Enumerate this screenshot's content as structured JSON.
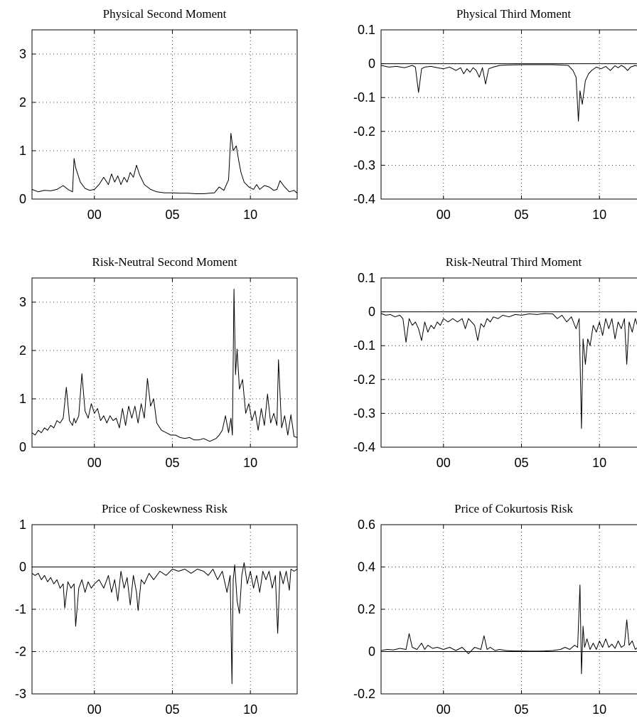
{
  "chart_data": [
    {
      "type": "line",
      "title": "Physical Second Moment",
      "xlim": [
        1996.0,
        2013.0
      ],
      "ylim": [
        0,
        3.5
      ],
      "xticks": [
        {
          "v": 2000,
          "label": "00"
        },
        {
          "v": 2005,
          "label": "05"
        },
        {
          "v": 2010,
          "label": "10"
        }
      ],
      "yticks": [
        {
          "v": 0,
          "label": "0"
        },
        {
          "v": 1,
          "label": "1"
        },
        {
          "v": 2,
          "label": "2"
        },
        {
          "v": 3,
          "label": "3"
        }
      ],
      "grid": true,
      "zero_line": false,
      "x": [
        1996.0,
        1996.4,
        1996.8,
        1997.2,
        1997.6,
        1998.0,
        1998.3,
        1998.6,
        1998.7,
        1998.8,
        1999.1,
        1999.4,
        1999.7,
        2000.0,
        2000.3,
        2000.6,
        2000.9,
        2001.1,
        2001.3,
        2001.5,
        2001.7,
        2001.9,
        2002.1,
        2002.3,
        2002.5,
        2002.7,
        2002.9,
        2003.2,
        2003.6,
        2004.0,
        2004.5,
        2005.0,
        2005.5,
        2006.0,
        2006.5,
        2007.0,
        2007.4,
        2007.7,
        2008.0,
        2008.3,
        2008.6,
        2008.75,
        2008.9,
        2009.1,
        2009.25,
        2009.4,
        2009.6,
        2009.9,
        2010.2,
        2010.4,
        2010.6,
        2010.9,
        2011.2,
        2011.5,
        2011.7,
        2011.9,
        2012.2,
        2012.5,
        2012.8,
        2013.0
      ],
      "y": [
        0.2,
        0.15,
        0.18,
        0.17,
        0.2,
        0.28,
        0.2,
        0.15,
        0.84,
        0.65,
        0.35,
        0.22,
        0.18,
        0.2,
        0.3,
        0.45,
        0.3,
        0.52,
        0.35,
        0.48,
        0.3,
        0.45,
        0.35,
        0.55,
        0.45,
        0.7,
        0.5,
        0.3,
        0.2,
        0.15,
        0.13,
        0.13,
        0.12,
        0.12,
        0.11,
        0.11,
        0.12,
        0.13,
        0.25,
        0.18,
        0.4,
        1.36,
        1.0,
        1.1,
        0.8,
        0.55,
        0.35,
        0.25,
        0.2,
        0.3,
        0.2,
        0.28,
        0.25,
        0.18,
        0.2,
        0.38,
        0.25,
        0.15,
        0.18,
        0.12
      ]
    },
    {
      "type": "line",
      "title": "Physical Third Moment",
      "xlim": [
        1996.0,
        2013.0
      ],
      "ylim": [
        -0.4,
        0.1
      ],
      "xticks": [
        {
          "v": 2000,
          "label": "00"
        },
        {
          "v": 2005,
          "label": "05"
        },
        {
          "v": 2010,
          "label": "10"
        }
      ],
      "yticks": [
        {
          "v": 0.1,
          "label": "0.1"
        },
        {
          "v": 0,
          "label": "0"
        },
        {
          "v": -0.1,
          "label": "-0.1"
        },
        {
          "v": -0.2,
          "label": "-0.2"
        },
        {
          "v": -0.3,
          "label": "-0.3"
        },
        {
          "v": -0.4,
          "label": "-0.4"
        }
      ],
      "grid": true,
      "zero_line": true,
      "x": [
        1996.0,
        1996.5,
        1997.0,
        1997.5,
        1998.0,
        1998.2,
        1998.4,
        1998.6,
        1998.8,
        1999.2,
        1999.6,
        2000.0,
        2000.4,
        2000.8,
        2001.1,
        2001.3,
        2001.5,
        2001.7,
        2001.9,
        2002.1,
        2002.3,
        2002.5,
        2002.7,
        2002.9,
        2003.2,
        2003.6,
        2004.0,
        2005.0,
        2006.0,
        2007.0,
        2007.6,
        2008.0,
        2008.3,
        2008.5,
        2008.65,
        2008.75,
        2008.9,
        2009.1,
        2009.3,
        2009.5,
        2009.8,
        2010.1,
        2010.4,
        2010.7,
        2011.0,
        2011.2,
        2011.4,
        2011.6,
        2011.8,
        2012.0,
        2012.3,
        2012.6,
        2013.0
      ],
      "y": [
        -0.005,
        -0.01,
        -0.008,
        -0.012,
        -0.005,
        -0.01,
        -0.085,
        -0.015,
        -0.01,
        -0.008,
        -0.012,
        -0.015,
        -0.01,
        -0.02,
        -0.012,
        -0.03,
        -0.015,
        -0.025,
        -0.012,
        -0.02,
        -0.04,
        -0.012,
        -0.06,
        -0.015,
        -0.01,
        -0.005,
        -0.004,
        -0.003,
        -0.003,
        -0.003,
        -0.004,
        -0.005,
        -0.02,
        -0.04,
        -0.17,
        -0.08,
        -0.12,
        -0.05,
        -0.03,
        -0.02,
        -0.01,
        -0.015,
        -0.008,
        -0.02,
        -0.006,
        -0.012,
        -0.005,
        -0.01,
        -0.02,
        -0.01,
        -0.005,
        -0.01,
        -0.006
      ]
    },
    {
      "type": "line",
      "title": "Risk-Neutral Second Moment",
      "xlim": [
        1996.0,
        2013.0
      ],
      "ylim": [
        0,
        3.5
      ],
      "xticks": [
        {
          "v": 2000,
          "label": "00"
        },
        {
          "v": 2005,
          "label": "05"
        },
        {
          "v": 2010,
          "label": "10"
        }
      ],
      "yticks": [
        {
          "v": 0,
          "label": "0"
        },
        {
          "v": 1,
          "label": "1"
        },
        {
          "v": 2,
          "label": "2"
        },
        {
          "v": 3,
          "label": "3"
        }
      ],
      "grid": true,
      "zero_line": false,
      "x": [
        1996.0,
        1996.2,
        1996.4,
        1996.6,
        1996.8,
        1997.0,
        1997.2,
        1997.4,
        1997.6,
        1997.8,
        1998.0,
        1998.2,
        1998.4,
        1998.6,
        1998.7,
        1998.8,
        1999.0,
        1999.2,
        1999.4,
        1999.6,
        1999.8,
        2000.0,
        2000.2,
        2000.4,
        2000.6,
        2000.8,
        2001.0,
        2001.2,
        2001.4,
        2001.6,
        2001.8,
        2002.0,
        2002.2,
        2002.4,
        2002.6,
        2002.8,
        2003.0,
        2003.2,
        2003.4,
        2003.6,
        2003.8,
        2004.0,
        2004.3,
        2004.6,
        2004.9,
        2005.2,
        2005.5,
        2005.8,
        2006.1,
        2006.4,
        2006.7,
        2007.0,
        2007.2,
        2007.4,
        2007.6,
        2007.8,
        2008.0,
        2008.2,
        2008.4,
        2008.6,
        2008.75,
        2008.85,
        2008.95,
        2009.05,
        2009.15,
        2009.3,
        2009.5,
        2009.7,
        2009.9,
        2010.1,
        2010.3,
        2010.5,
        2010.7,
        2010.9,
        2011.1,
        2011.3,
        2011.5,
        2011.7,
        2011.8,
        2012.0,
        2012.2,
        2012.4,
        2012.6,
        2012.8,
        2013.0
      ],
      "y": [
        0.3,
        0.25,
        0.35,
        0.3,
        0.4,
        0.35,
        0.45,
        0.4,
        0.55,
        0.5,
        0.6,
        1.24,
        0.55,
        0.45,
        0.6,
        0.5,
        0.65,
        1.52,
        0.75,
        0.6,
        0.9,
        0.7,
        0.8,
        0.55,
        0.65,
        0.5,
        0.65,
        0.55,
        0.6,
        0.4,
        0.8,
        0.45,
        0.85,
        0.6,
        0.85,
        0.5,
        0.9,
        0.6,
        1.42,
        0.85,
        1.0,
        0.5,
        0.35,
        0.3,
        0.25,
        0.25,
        0.2,
        0.18,
        0.2,
        0.15,
        0.15,
        0.18,
        0.15,
        0.12,
        0.15,
        0.18,
        0.25,
        0.35,
        0.65,
        0.3,
        0.6,
        0.25,
        3.27,
        1.5,
        2.03,
        1.2,
        1.4,
        0.7,
        0.9,
        0.55,
        0.75,
        0.35,
        0.8,
        0.45,
        1.1,
        0.5,
        0.7,
        0.45,
        1.81,
        0.4,
        0.65,
        0.25,
        0.67,
        0.22,
        0.2
      ]
    },
    {
      "type": "line",
      "title": "Risk-Neutral Third Moment",
      "xlim": [
        1996.0,
        2013.0
      ],
      "ylim": [
        -0.4,
        0.1
      ],
      "xticks": [
        {
          "v": 2000,
          "label": "00"
        },
        {
          "v": 2005,
          "label": "05"
        },
        {
          "v": 2010,
          "label": "10"
        }
      ],
      "yticks": [
        {
          "v": 0.1,
          "label": "0.1"
        },
        {
          "v": 0,
          "label": "0"
        },
        {
          "v": -0.1,
          "label": "-0.1"
        },
        {
          "v": -0.2,
          "label": "-0.2"
        },
        {
          "v": -0.3,
          "label": "-0.3"
        },
        {
          "v": -0.4,
          "label": "-0.4"
        }
      ],
      "grid": true,
      "zero_line": true,
      "x": [
        1996.0,
        1996.3,
        1996.6,
        1996.9,
        1997.2,
        1997.4,
        1997.6,
        1997.8,
        1998.0,
        1998.2,
        1998.4,
        1998.6,
        1998.8,
        1999.0,
        1999.2,
        1999.4,
        1999.6,
        1999.8,
        2000.0,
        2000.3,
        2000.6,
        2000.9,
        2001.2,
        2001.4,
        2001.6,
        2001.8,
        2002.0,
        2002.2,
        2002.4,
        2002.6,
        2002.8,
        2003.0,
        2003.2,
        2003.5,
        2003.8,
        2004.2,
        2004.6,
        2005.0,
        2005.5,
        2006.0,
        2006.5,
        2007.0,
        2007.3,
        2007.6,
        2007.9,
        2008.2,
        2008.5,
        2008.7,
        2008.85,
        2008.95,
        2009.1,
        2009.25,
        2009.4,
        2009.6,
        2009.8,
        2010.0,
        2010.2,
        2010.4,
        2010.6,
        2010.8,
        2011.0,
        2011.2,
        2011.4,
        2011.6,
        2011.75,
        2011.9,
        2012.1,
        2012.3,
        2012.5,
        2012.7,
        2013.0
      ],
      "y": [
        -0.005,
        -0.01,
        -0.008,
        -0.015,
        -0.01,
        -0.02,
        -0.09,
        -0.02,
        -0.04,
        -0.03,
        -0.05,
        -0.085,
        -0.03,
        -0.06,
        -0.04,
        -0.05,
        -0.03,
        -0.04,
        -0.02,
        -0.03,
        -0.02,
        -0.03,
        -0.02,
        -0.05,
        -0.02,
        -0.03,
        -0.04,
        -0.085,
        -0.035,
        -0.045,
        -0.02,
        -0.03,
        -0.015,
        -0.02,
        -0.01,
        -0.015,
        -0.008,
        -0.01,
        -0.006,
        -0.008,
        -0.005,
        -0.006,
        -0.02,
        -0.01,
        -0.03,
        -0.015,
        -0.05,
        -0.02,
        -0.345,
        -0.08,
        -0.155,
        -0.08,
        -0.1,
        -0.04,
        -0.06,
        -0.03,
        -0.07,
        -0.02,
        -0.05,
        -0.02,
        -0.08,
        -0.03,
        -0.05,
        -0.02,
        -0.155,
        -0.03,
        -0.06,
        -0.02,
        -0.05,
        -0.015,
        -0.01
      ]
    },
    {
      "type": "line",
      "title": "Price of Coskewness Risk",
      "xlim": [
        1996.0,
        2013.0
      ],
      "ylim": [
        -3,
        1
      ],
      "xticks": [
        {
          "v": 2000,
          "label": "00"
        },
        {
          "v": 2005,
          "label": "05"
        },
        {
          "v": 2010,
          "label": "10"
        }
      ],
      "yticks": [
        {
          "v": 1,
          "label": "1"
        },
        {
          "v": 0,
          "label": "0"
        },
        {
          "v": -1,
          "label": "-1"
        },
        {
          "v": -2,
          "label": "-2"
        },
        {
          "v": -3,
          "label": "-3"
        }
      ],
      "grid": true,
      "zero_line": true,
      "x": [
        1996.0,
        1996.2,
        1996.4,
        1996.6,
        1996.8,
        1997.0,
        1997.2,
        1997.4,
        1997.6,
        1997.8,
        1998.0,
        1998.1,
        1998.3,
        1998.5,
        1998.7,
        1998.8,
        1999.0,
        1999.2,
        1999.4,
        1999.6,
        1999.8,
        2000.0,
        2000.3,
        2000.6,
        2000.9,
        2001.1,
        2001.3,
        2001.5,
        2001.7,
        2001.9,
        2002.1,
        2002.3,
        2002.5,
        2002.7,
        2002.8,
        2003.0,
        2003.2,
        2003.5,
        2003.8,
        2004.2,
        2004.6,
        2005.0,
        2005.4,
        2005.8,
        2006.2,
        2006.6,
        2007.0,
        2007.3,
        2007.6,
        2007.9,
        2008.2,
        2008.5,
        2008.7,
        2008.82,
        2008.9,
        2009.0,
        2009.15,
        2009.3,
        2009.45,
        2009.6,
        2009.8,
        2010.0,
        2010.2,
        2010.4,
        2010.6,
        2010.8,
        2011.0,
        2011.2,
        2011.4,
        2011.6,
        2011.75,
        2011.9,
        2012.1,
        2012.3,
        2012.5,
        2012.6,
        2012.8,
        2013.0
      ],
      "y": [
        -0.15,
        -0.2,
        -0.15,
        -0.3,
        -0.2,
        -0.35,
        -0.25,
        -0.4,
        -0.3,
        -0.5,
        -0.4,
        -0.97,
        -0.35,
        -0.5,
        -0.4,
        -1.4,
        -0.5,
        -0.3,
        -0.6,
        -0.35,
        -0.5,
        -0.4,
        -0.3,
        -0.5,
        -0.2,
        -0.6,
        -0.3,
        -0.8,
        -0.1,
        -0.5,
        -0.25,
        -0.9,
        -0.2,
        -0.6,
        -1.03,
        -0.3,
        -0.4,
        -0.15,
        -0.3,
        -0.1,
        -0.2,
        -0.05,
        -0.1,
        -0.05,
        -0.15,
        -0.05,
        -0.1,
        -0.2,
        -0.05,
        -0.3,
        -0.1,
        -0.6,
        -0.2,
        -2.76,
        -0.3,
        0.05,
        -0.8,
        -1.1,
        -0.2,
        0.1,
        -0.4,
        -0.1,
        -0.5,
        -0.2,
        -0.6,
        -0.1,
        -0.3,
        -0.1,
        -0.5,
        -0.2,
        -1.57,
        -0.1,
        -0.4,
        -0.1,
        -0.55,
        -0.05,
        -0.1,
        -0.05
      ]
    },
    {
      "type": "line",
      "title": "Price of Cokurtosis Risk",
      "xlim": [
        1996.0,
        2013.0
      ],
      "ylim": [
        -0.2,
        0.6
      ],
      "xticks": [
        {
          "v": 2000,
          "label": "00"
        },
        {
          "v": 2005,
          "label": "05"
        },
        {
          "v": 2010,
          "label": "10"
        }
      ],
      "yticks": [
        {
          "v": 0.6,
          "label": "0.6"
        },
        {
          "v": 0.4,
          "label": "0.4"
        },
        {
          "v": 0.2,
          "label": "0.2"
        },
        {
          "v": 0,
          "label": "0"
        },
        {
          "v": -0.2,
          "label": "-0.2"
        }
      ],
      "grid": true,
      "zero_line": true,
      "x": [
        1996.0,
        1996.4,
        1996.8,
        1997.2,
        1997.6,
        1997.8,
        1998.0,
        1998.3,
        1998.6,
        1998.8,
        1999.0,
        1999.3,
        1999.6,
        2000.0,
        2000.4,
        2000.8,
        2001.2,
        2001.6,
        2002.0,
        2002.4,
        2002.6,
        2002.8,
        2003.0,
        2003.3,
        2003.6,
        2004.0,
        2004.5,
        2005.0,
        2005.5,
        2006.0,
        2006.5,
        2007.0,
        2007.5,
        2007.8,
        2008.1,
        2008.4,
        2008.6,
        2008.75,
        2008.85,
        2008.95,
        2009.05,
        2009.2,
        2009.4,
        2009.6,
        2009.8,
        2010.0,
        2010.2,
        2010.4,
        2010.6,
        2010.8,
        2011.0,
        2011.2,
        2011.4,
        2011.6,
        2011.75,
        2011.9,
        2012.1,
        2012.3,
        2012.6,
        2013.0
      ],
      "y": [
        0.005,
        0.01,
        0.008,
        0.015,
        0.01,
        0.085,
        0.02,
        0.01,
        0.04,
        0.01,
        0.03,
        0.015,
        0.02,
        0.01,
        0.02,
        0.005,
        0.02,
        -0.01,
        0.02,
        0.01,
        0.075,
        0.01,
        0.02,
        0.005,
        0.01,
        0.005,
        0.003,
        0.003,
        0.002,
        0.002,
        0.003,
        0.005,
        0.01,
        0.02,
        0.01,
        0.03,
        0.02,
        0.315,
        -0.105,
        0.12,
        0.02,
        0.06,
        0.01,
        0.04,
        0.01,
        0.05,
        0.02,
        0.06,
        0.02,
        0.035,
        0.015,
        0.05,
        0.02,
        0.03,
        0.15,
        0.03,
        0.05,
        0.01,
        0.03,
        0.01
      ]
    }
  ]
}
